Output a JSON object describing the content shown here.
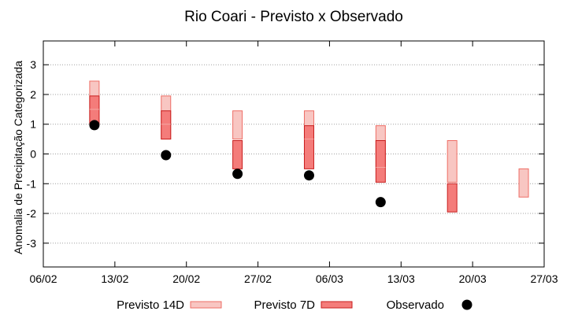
{
  "chart_data": {
    "type": "box",
    "title": "Rio Coari - Previsto x Observado",
    "xlabel": "",
    "ylabel": "Anomalia de Precipitação Categorizada",
    "ylim": [
      -3.8,
      3.8
    ],
    "yticks": [
      -3,
      -2,
      -1,
      0,
      1,
      2,
      3
    ],
    "x_range": [
      "2023-02-06",
      "2023-03-27"
    ],
    "xticks": [
      "06/02",
      "13/02",
      "20/02",
      "27/02",
      "06/03",
      "13/03",
      "20/03",
      "27/03"
    ],
    "grid": "horizontal dotted",
    "legend_position": "bottom",
    "colors": {
      "previsto_14d_fill": "#f8c6c2",
      "previsto_14d_edge": "#ee6e66",
      "previsto_7d_fill": "#f47c7a",
      "previsto_7d_edge": "#c81e1e",
      "observado": "#000000"
    },
    "series": [
      {
        "name": "Previsto 14D",
        "kind": "range",
        "points": [
          {
            "x": "2023-02-11",
            "low": 1.0,
            "high": 2.45
          },
          {
            "x": "2023-02-18",
            "low": 0.5,
            "high": 1.95
          },
          {
            "x": "2023-02-25",
            "low": 0.5,
            "high": 1.45
          },
          {
            "x": "2023-03-04",
            "low": 0.5,
            "high": 1.45
          },
          {
            "x": "2023-03-11",
            "low": -0.45,
            "high": 0.95
          },
          {
            "x": "2023-03-18",
            "low": -0.95,
            "high": 0.45
          },
          {
            "x": "2023-03-25",
            "low": -1.45,
            "high": -0.5
          }
        ]
      },
      {
        "name": "Previsto 7D",
        "kind": "range",
        "points": [
          {
            "x": "2023-02-11",
            "low": 1.0,
            "mid": 1.5,
            "high": 1.95
          },
          {
            "x": "2023-02-18",
            "low": 0.5,
            "mid": 1.0,
            "high": 1.45
          },
          {
            "x": "2023-02-25",
            "low": -0.5,
            "high": 0.45
          },
          {
            "x": "2023-03-04",
            "low": -0.5,
            "mid": 0.5,
            "high": 0.95
          },
          {
            "x": "2023-03-11",
            "low": -0.95,
            "mid": -0.45,
            "high": 0.45
          },
          {
            "x": "2023-03-18",
            "low": -1.95,
            "high": -1.0
          }
        ]
      },
      {
        "name": "Observado",
        "kind": "scatter",
        "points": [
          {
            "x": "2023-02-11",
            "y": 0.97
          },
          {
            "x": "2023-02-18",
            "y": -0.04
          },
          {
            "x": "2023-02-25",
            "y": -0.67
          },
          {
            "x": "2023-03-04",
            "y": -0.72
          },
          {
            "x": "2023-03-11",
            "y": -1.62
          }
        ]
      }
    ]
  }
}
